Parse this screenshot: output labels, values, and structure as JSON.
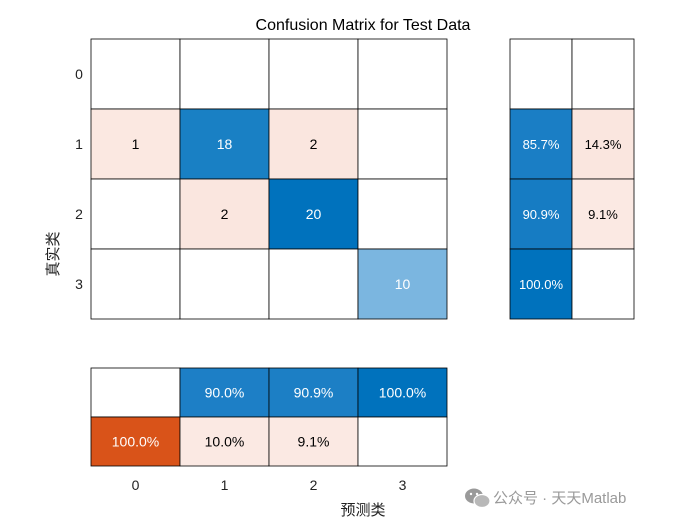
{
  "chart_data": {
    "type": "heatmap",
    "title": "Confusion Matrix for Test Data",
    "xlabel": "预测类",
    "ylabel": "真实类",
    "classes": [
      "0",
      "1",
      "2",
      "3"
    ],
    "matrix": [
      [
        null,
        null,
        null,
        null
      ],
      [
        1,
        18,
        2,
        null
      ],
      [
        null,
        2,
        20,
        null
      ],
      [
        null,
        null,
        null,
        10
      ]
    ],
    "row_summary": [
      [
        null,
        null
      ],
      [
        "85.7%",
        "14.3%"
      ],
      [
        "90.9%",
        "9.1%"
      ],
      [
        "100.0%",
        null
      ]
    ],
    "column_summary": [
      [
        null,
        "90.0%",
        "90.9%",
        "100.0%"
      ],
      [
        "100.0%",
        "10.0%",
        "9.1%",
        null
      ]
    ]
  },
  "watermark": {
    "text": "公众号 · 天天Matlab",
    "icon": "wechat-icon"
  },
  "colors": {
    "blue_max": "#0072bd",
    "blue_light": "#7bb6e0",
    "blue_dark": "#1f80c6",
    "pink": "#fae6df",
    "pink_light": "#fbe9e3",
    "orange": "#d95319",
    "grid": "#000000",
    "background": "#ffffff"
  }
}
